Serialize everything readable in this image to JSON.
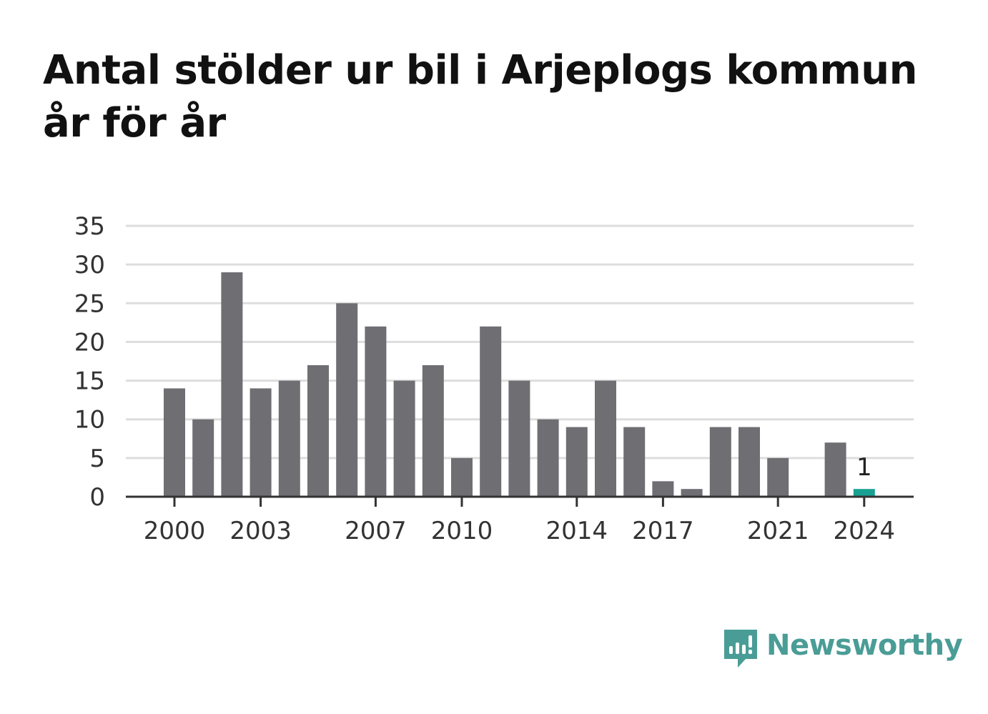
{
  "title": "Antal stölder ur bil i Arjeplogs kommun år för år",
  "colors": {
    "bar": "#6f6e73",
    "highlight": "#18a193",
    "grid": "#dddddd",
    "axis": "#333333",
    "logo": "#4a9d96"
  },
  "logo": {
    "text": "Newsworthy",
    "icon": "bar-chart-speech-bubble-icon"
  },
  "chart_data": {
    "type": "bar",
    "title": "Antal stölder ur bil i Arjeplogs kommun år för år",
    "xlabel": "",
    "ylabel": "",
    "categories": [
      "2000",
      "2001",
      "2002",
      "2003",
      "2004",
      "2005",
      "2006",
      "2007",
      "2008",
      "2009",
      "2010",
      "2011",
      "2012",
      "2013",
      "2014",
      "2015",
      "2016",
      "2017",
      "2018",
      "2019",
      "2020",
      "2021",
      "2022",
      "2023",
      "2024"
    ],
    "values": [
      14,
      10,
      29,
      14,
      15,
      17,
      25,
      22,
      15,
      17,
      5,
      22,
      15,
      10,
      9,
      15,
      9,
      2,
      1,
      9,
      9,
      5,
      0,
      7,
      1
    ],
    "highlight_index": 24,
    "data_labels": [
      {
        "index": 24,
        "text": "1"
      }
    ],
    "ylim": [
      0,
      35
    ],
    "yticks": [
      0,
      5,
      10,
      15,
      20,
      25,
      30,
      35
    ],
    "xtick_labels": [
      "2000",
      "2003",
      "2007",
      "2010",
      "2014",
      "2017",
      "2021",
      "2024"
    ],
    "grid": true,
    "legend": "none"
  }
}
